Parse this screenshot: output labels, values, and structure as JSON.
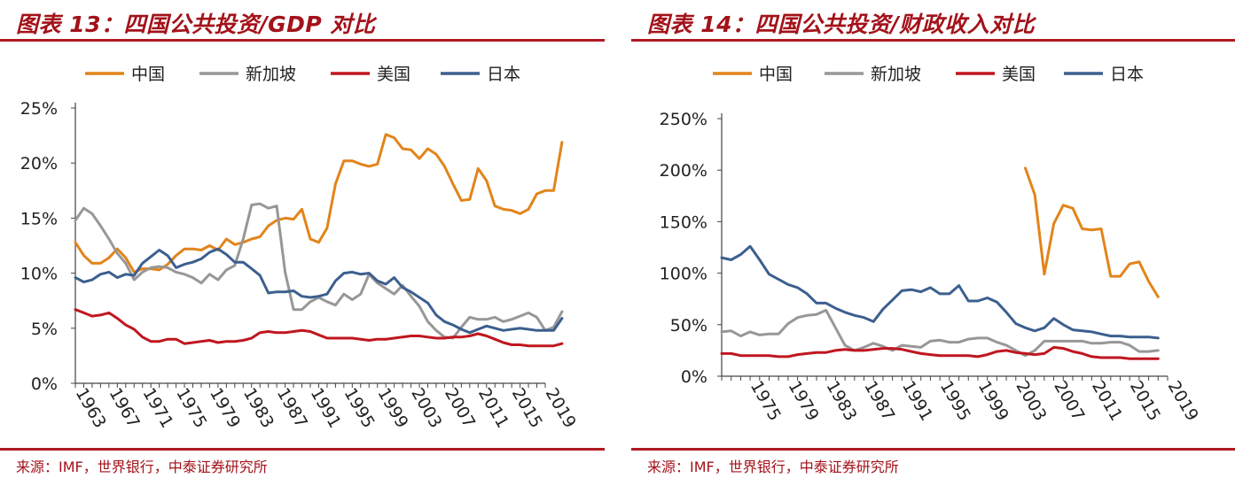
{
  "colors": {
    "china": "#E2841A",
    "singapore": "#979797",
    "usa": "#C0161F",
    "japan": "#3C5F8E",
    "title": "#A3121A"
  },
  "panels": [
    {
      "title": "图表 13：四国公共投资/GDP 对比",
      "source": "来源：IMF，世界银行，中泰证券研究所"
    },
    {
      "title": "图表 14：四国公共投资/财政收入对比",
      "source": "来源：IMF，世界银行，中泰证券研究所"
    }
  ],
  "chart_data": [
    {
      "type": "line",
      "legend": [
        "中国",
        "新加坡",
        "美国",
        "日本"
      ],
      "ylim": [
        0,
        25
      ],
      "y_ticks": [
        0,
        5,
        10,
        15,
        20,
        25
      ],
      "y_tick_labels": [
        "0%",
        "5%",
        "10%",
        "15%",
        "20%",
        "25%"
      ],
      "x_range": [
        1963,
        2019
      ],
      "x_ticks": [
        1963,
        1967,
        1971,
        1975,
        1979,
        1983,
        1987,
        1991,
        1995,
        1999,
        2003,
        2007,
        2011,
        2015,
        2019
      ],
      "x_tick_labels": [
        "1963",
        "1967",
        "1971",
        "1975",
        "1979",
        "1983",
        "1987",
        "1991",
        "1995",
        "1999",
        "2003",
        "2007",
        "2011",
        "2015",
        "2019"
      ],
      "series": [
        {
          "name": "中国",
          "key": "china",
          "start": 1963,
          "values": [
            12.8,
            11.6,
            10.9,
            10.9,
            11.4,
            12.2,
            11.4,
            10.1,
            10.4,
            10.4,
            10.3,
            10.8,
            11.6,
            12.2,
            12.2,
            12.1,
            12.5,
            12.1,
            13.1,
            12.6,
            12.8,
            13.1,
            13.3,
            14.3,
            14.8,
            15.0,
            14.9,
            15.8,
            13.1,
            12.8,
            14.1,
            18.1,
            20.2,
            20.2,
            19.9,
            19.7,
            19.9,
            22.6,
            22.3,
            21.3,
            21.2,
            20.4,
            21.3,
            20.8,
            19.7,
            18.1,
            16.6,
            16.7,
            19.5,
            18.4,
            16.1,
            15.8,
            15.7,
            15.4,
            15.8,
            17.2,
            17.5,
            17.5,
            21.9
          ]
        },
        {
          "name": "新加坡",
          "key": "singapore",
          "start": 1963,
          "values": [
            14.8,
            15.9,
            15.4,
            14.3,
            13.1,
            11.8,
            10.9,
            9.4,
            10.1,
            10.5,
            10.6,
            10.5,
            10.1,
            9.9,
            9.6,
            9.1,
            9.9,
            9.4,
            10.3,
            10.7,
            13.1,
            16.2,
            16.3,
            15.9,
            16.1,
            10.1,
            6.7,
            6.7,
            7.4,
            7.8,
            7.4,
            7.1,
            8.1,
            7.6,
            8.1,
            9.9,
            9.1,
            8.6,
            8.1,
            8.9,
            7.9,
            7.0,
            5.6,
            4.8,
            4.2,
            4.1,
            5.1,
            6.0,
            5.8,
            5.8,
            6.0,
            5.6,
            5.8,
            6.1,
            6.4,
            6.0,
            4.8,
            5.1,
            6.5
          ]
        },
        {
          "name": "美国",
          "key": "usa",
          "start": 1963,
          "values": [
            6.7,
            6.4,
            6.1,
            6.2,
            6.4,
            5.9,
            5.3,
            4.9,
            4.2,
            3.8,
            3.8,
            4.0,
            4.0,
            3.6,
            3.7,
            3.8,
            3.9,
            3.7,
            3.8,
            3.8,
            3.9,
            4.1,
            4.6,
            4.7,
            4.6,
            4.6,
            4.7,
            4.8,
            4.7,
            4.4,
            4.1,
            4.1,
            4.1,
            4.1,
            4.0,
            3.9,
            4.0,
            4.0,
            4.1,
            4.2,
            4.3,
            4.3,
            4.2,
            4.1,
            4.1,
            4.2,
            4.2,
            4.3,
            4.5,
            4.3,
            4.0,
            3.7,
            3.5,
            3.5,
            3.4,
            3.4,
            3.4,
            3.4,
            3.6
          ]
        },
        {
          "name": "日本",
          "key": "japan",
          "start": 1963,
          "values": [
            9.6,
            9.2,
            9.4,
            9.9,
            10.1,
            9.6,
            9.9,
            9.8,
            10.9,
            11.5,
            12.1,
            11.6,
            10.5,
            10.8,
            11.0,
            11.3,
            11.9,
            12.2,
            11.7,
            11.0,
            11.0,
            10.4,
            9.8,
            8.2,
            8.3,
            8.3,
            8.4,
            7.9,
            7.8,
            7.9,
            8.1,
            9.3,
            10.0,
            10.1,
            9.9,
            10.0,
            9.3,
            9.0,
            9.6,
            8.7,
            8.3,
            7.8,
            7.3,
            6.2,
            5.6,
            5.3,
            4.9,
            4.6,
            4.9,
            5.2,
            5.0,
            4.8,
            4.9,
            5.0,
            4.9,
            4.8,
            4.8,
            4.8,
            5.9
          ]
        }
      ]
    },
    {
      "type": "line",
      "legend": [
        "中国",
        "新加坡",
        "美国",
        "日本"
      ],
      "ylim": [
        0,
        250
      ],
      "y_ticks": [
        0,
        50,
        100,
        150,
        200,
        250
      ],
      "y_tick_labels": [
        "0%",
        "50%",
        "100%",
        "150%",
        "200%",
        "250%"
      ],
      "x_range": [
        1972,
        2019
      ],
      "x_ticks": [
        1975,
        1979,
        1983,
        1987,
        1991,
        1995,
        1999,
        2003,
        2007,
        2011,
        2015,
        2019
      ],
      "x_tick_labels": [
        "1975",
        "1979",
        "1983",
        "1987",
        "1991",
        "1995",
        "1999",
        "2003",
        "2007",
        "2011",
        "2015",
        "2019"
      ],
      "series": [
        {
          "name": "中国",
          "key": "china",
          "start": 2004,
          "values": [
            202,
            176,
            99,
            148,
            166,
            163,
            143,
            142,
            143,
            97,
            97,
            109,
            111,
            92,
            77
          ]
        },
        {
          "name": "新加坡",
          "key": "singapore",
          "start": 1972,
          "values": [
            43,
            44,
            39,
            43,
            40,
            41,
            41,
            51,
            57,
            59,
            60,
            64,
            47,
            30,
            25,
            28,
            32,
            29,
            25,
            30,
            29,
            28,
            34,
            35,
            33,
            33,
            36,
            37,
            37,
            33,
            30,
            25,
            20,
            25,
            34,
            34,
            34,
            34,
            34,
            32,
            32,
            33,
            33,
            30,
            24,
            24,
            25
          ]
        },
        {
          "name": "美国",
          "key": "usa",
          "start": 1972,
          "values": [
            22,
            22,
            20,
            20,
            20,
            20,
            19,
            19,
            21,
            22,
            23,
            23,
            25,
            26,
            25,
            25,
            26,
            27,
            27,
            26,
            24,
            22,
            21,
            20,
            20,
            20,
            20,
            19,
            21,
            24,
            25,
            23,
            22,
            21,
            22,
            28,
            27,
            24,
            22,
            19,
            18,
            18,
            18,
            17,
            17,
            17,
            17
          ]
        },
        {
          "name": "日本",
          "key": "japan",
          "start": 1972,
          "values": [
            115,
            113,
            118,
            126,
            113,
            99,
            94,
            89,
            86,
            80,
            71,
            71,
            66,
            62,
            59,
            57,
            53,
            65,
            74,
            83,
            84,
            82,
            86,
            80,
            80,
            88,
            73,
            73,
            76,
            72,
            62,
            51,
            47,
            44,
            47,
            56,
            50,
            45,
            44,
            43,
            41,
            39,
            39,
            38,
            38,
            38,
            37
          ]
        }
      ]
    }
  ]
}
